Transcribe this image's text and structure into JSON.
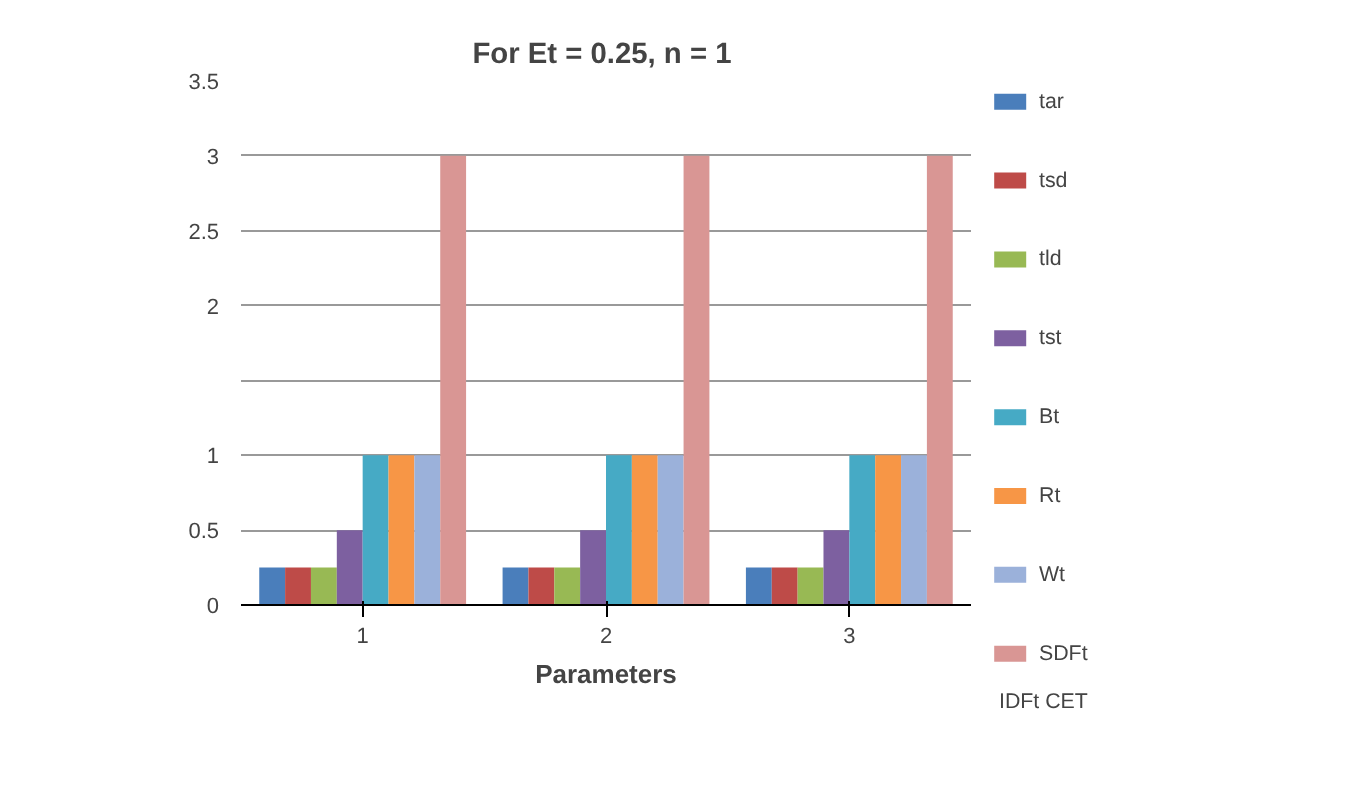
{
  "chart_data": {
    "type": "bar",
    "title": "For Et = 0.25,  n = 1",
    "xlabel": "Parameters",
    "categories": [
      "1",
      "2",
      "3"
    ],
    "series": [
      {
        "name": "tar",
        "color": "#4a7ebb",
        "values": [
          0.25,
          0.25,
          0.25
        ]
      },
      {
        "name": "tsd",
        "color": "#be4b48",
        "values": [
          0.25,
          0.25,
          0.25
        ]
      },
      {
        "name": "tld",
        "color": "#98b954",
        "values": [
          0.25,
          0.25,
          0.25
        ]
      },
      {
        "name": "tst",
        "color": "#7d60a0",
        "values": [
          0.5,
          0.5,
          0.5
        ]
      },
      {
        "name": "Bt",
        "color": "#46aac5",
        "values": [
          1,
          1,
          1
        ]
      },
      {
        "name": "Rt",
        "color": "#f79646",
        "values": [
          1,
          1,
          1
        ]
      },
      {
        "name": "Wt",
        "color": "#9bb1da",
        "values": [
          1,
          1,
          1
        ]
      },
      {
        "name": "SDFt",
        "color": "#d99694",
        "values": [
          3,
          3,
          3
        ]
      }
    ],
    "ylim": [
      0,
      3.5
    ],
    "yticks": [
      0,
      0.5,
      1,
      {
        "value": 1.5,
        "label": null
      },
      2,
      2.5,
      3,
      3.5
    ],
    "grid": "y",
    "legend": "right",
    "annotations": [
      "IDFt CET"
    ]
  }
}
